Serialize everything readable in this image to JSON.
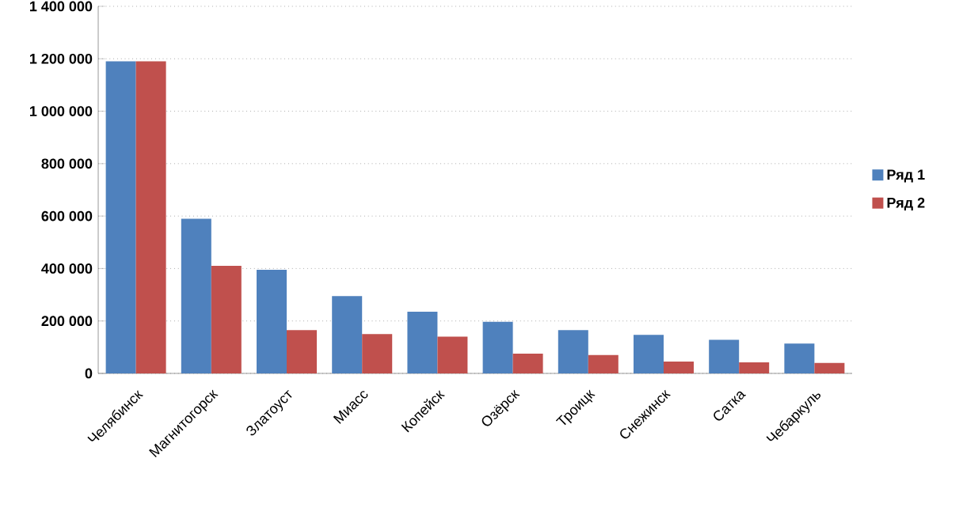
{
  "chart_data": {
    "type": "bar",
    "categories": [
      "Челябинск",
      "Магнитогорск",
      "Златоуст",
      "Миасс",
      "Копейск",
      "Озёрск",
      "Троицк",
      "Снежинск",
      "Сатка",
      "Чебаркуль"
    ],
    "series": [
      {
        "name": "Ряд 1",
        "color": "#4f81bd",
        "values": [
          1190000,
          590000,
          395000,
          295000,
          235000,
          197000,
          165000,
          147000,
          128000,
          114000
        ]
      },
      {
        "name": "Ряд 2",
        "color": "#c0504d",
        "values": [
          1190000,
          410000,
          165000,
          150000,
          140000,
          75000,
          70000,
          45000,
          42000,
          40000
        ]
      }
    ],
    "ylim": [
      0,
      1400000
    ],
    "yticks": [
      0,
      {
        "value": 200000,
        "label": "200 000"
      },
      {
        "value": 400000,
        "label": "400 000"
      },
      {
        "value": 600000,
        "label": "600 000"
      },
      {
        "value": 800000,
        "label": "800 000"
      },
      {
        "value": 1000000,
        "label": "1 000 000"
      },
      {
        "value": 1200000,
        "label": "1 200 000"
      },
      {
        "value": 1400000,
        "label": "1 400 000"
      }
    ],
    "grid": "y",
    "legend": "right"
  }
}
